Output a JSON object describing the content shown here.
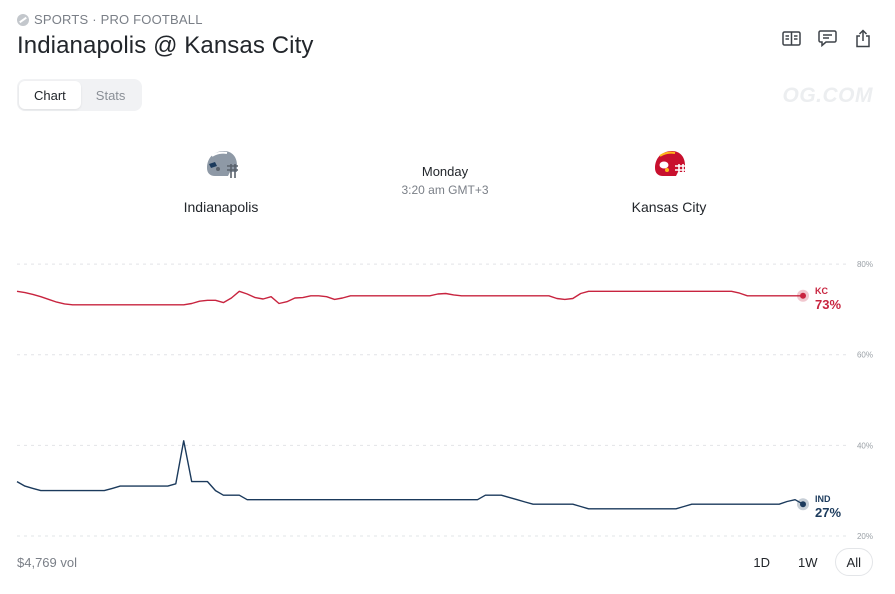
{
  "breadcrumb": {
    "icon": "football-icon",
    "text": "SPORTS · PRO FOOTBALL"
  },
  "title": "Indianapolis @ Kansas City",
  "actions": [
    {
      "name": "book-icon"
    },
    {
      "name": "comment-icon"
    },
    {
      "name": "share-icon"
    }
  ],
  "tabs": [
    {
      "label": "Chart",
      "active": true
    },
    {
      "label": "Stats",
      "active": false
    }
  ],
  "watermark": "OG.COM",
  "game": {
    "home": {
      "name": "Indianapolis",
      "helmet_color": "#8e99a6"
    },
    "away": {
      "name": "Kansas City",
      "helmet_color": "#c8102e"
    },
    "day": "Monday",
    "time": "3:20 am GMT+3"
  },
  "volume": "$4,769 vol",
  "ranges": [
    {
      "label": "1D",
      "active": false
    },
    {
      "label": "1W",
      "active": false
    },
    {
      "label": "All",
      "active": true
    }
  ],
  "chart_data": {
    "type": "line",
    "y_ticks": [
      "80%",
      "60%",
      "40%",
      "20%"
    ],
    "ylim": [
      18,
      82
    ],
    "grid": true,
    "x_count": 100,
    "series": [
      {
        "name": "KC",
        "end_label": "73%",
        "color": "#c8243f",
        "values": [
          74,
          73.7,
          73.3,
          72.8,
          72.2,
          71.6,
          71.2,
          71,
          71,
          71,
          71,
          71,
          71,
          71,
          71,
          71,
          71,
          71,
          71,
          71,
          71,
          71,
          71.3,
          71.8,
          72,
          72,
          71.5,
          72.5,
          74,
          73.4,
          72.6,
          72.3,
          72.8,
          71.3,
          71.7,
          72.5,
          72.6,
          73,
          73,
          72.8,
          72.2,
          72.5,
          73,
          73,
          73,
          73,
          73,
          73,
          73,
          73,
          73,
          73,
          73,
          73.4,
          73.5,
          73.2,
          73,
          73,
          73,
          73,
          73,
          73,
          73,
          73,
          73,
          73,
          73,
          73,
          72.4,
          72.2,
          72.4,
          73.5,
          74,
          74,
          74,
          74,
          74,
          74,
          74,
          74,
          74,
          74,
          74,
          74,
          74,
          74,
          74,
          74,
          74,
          74,
          74,
          73.6,
          73,
          73,
          73,
          73,
          73,
          73,
          73,
          73
        ]
      },
      {
        "name": "IND",
        "end_label": "27%",
        "color": "#1b3a5c",
        "values": [
          32,
          31,
          30.5,
          30,
          30,
          30,
          30,
          30,
          30,
          30,
          30,
          30,
          30.5,
          31,
          31,
          31,
          31,
          31,
          31,
          31,
          31.5,
          41,
          32,
          32,
          32,
          30,
          29,
          29,
          29,
          28,
          28,
          28,
          28,
          28,
          28,
          28,
          28,
          28,
          28,
          28,
          28,
          28,
          28,
          28,
          28,
          28,
          28,
          28,
          28,
          28,
          28,
          28,
          28,
          28,
          28,
          28,
          28,
          28,
          28,
          29,
          29,
          29,
          28.5,
          28,
          27.5,
          27,
          27,
          27,
          27,
          27,
          27,
          26.5,
          26,
          26,
          26,
          26,
          26,
          26,
          26,
          26,
          26,
          26,
          26,
          26,
          26.5,
          27,
          27,
          27,
          27,
          27,
          27,
          27,
          27,
          27,
          27,
          27,
          27,
          27.6,
          28,
          27
        ]
      }
    ]
  }
}
